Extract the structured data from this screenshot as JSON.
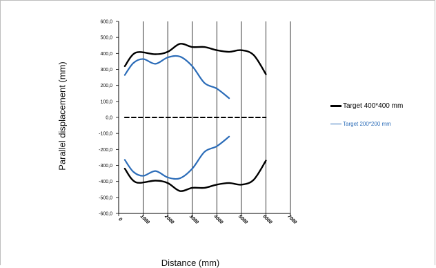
{
  "chart_data": {
    "type": "line",
    "xlabel": "Distance (mm)",
    "ylabel": "Parallel displacement (mm)",
    "xlim": [
      0,
      7000
    ],
    "ylim": [
      -600,
      600
    ],
    "x_ticks": [
      0,
      1000,
      2000,
      3000,
      4000,
      5000,
      6000,
      7000
    ],
    "y_ticks": [
      -600,
      -500,
      -400,
      -300,
      -200,
      -100,
      0,
      100,
      200,
      300,
      400,
      500,
      600
    ],
    "y_tick_labels": [
      "-600,0",
      "-500,0",
      "-400,0",
      "-300,0",
      "-200,0",
      "-100,0",
      "0,0",
      "100,0",
      "200,0",
      "300,0",
      "400,0",
      "500,0",
      "600,0"
    ],
    "grid": "vertical",
    "legend_position": "right",
    "series": [
      {
        "name": "Target 400*400 mm",
        "color": "#000000",
        "x": [
          250,
          700,
          1500,
          2000,
          2500,
          3000,
          3500,
          4000,
          4500,
          5000,
          5500,
          6000
        ],
        "y": [
          320,
          405,
          395,
          410,
          460,
          440,
          440,
          420,
          410,
          420,
          390,
          270
        ]
      },
      {
        "name": "Target 400*400 mm",
        "color": "#000000",
        "x": [
          250,
          700,
          1500,
          2000,
          2500,
          3000,
          3500,
          4000,
          4500,
          5000,
          5500,
          6000
        ],
        "y": [
          -320,
          -405,
          -395,
          -410,
          -460,
          -440,
          -440,
          -420,
          -410,
          -420,
          -390,
          -270
        ]
      },
      {
        "name": "Target 200*200 mm",
        "color": "#2b6cb8",
        "x": [
          250,
          600,
          1000,
          1500,
          2000,
          2500,
          3000,
          3500,
          4000,
          4500
        ],
        "y": [
          265,
          340,
          365,
          335,
          375,
          380,
          320,
          215,
          180,
          120
        ]
      },
      {
        "name": "Target 200*200 mm",
        "color": "#2b6cb8",
        "x": [
          250,
          600,
          1000,
          1500,
          2000,
          2500,
          3000,
          3500,
          4000,
          4500
        ],
        "y": [
          -265,
          -340,
          -365,
          -335,
          -375,
          -380,
          -320,
          -215,
          -180,
          -120
        ]
      },
      {
        "name": "",
        "color": "#000000",
        "dashed": true,
        "x": [
          250,
          6000
        ],
        "y": [
          0,
          0
        ]
      }
    ]
  },
  "legend": [
    {
      "label": "Target 400*400 mm"
    },
    {
      "label": "Target 200*200 mm"
    }
  ]
}
